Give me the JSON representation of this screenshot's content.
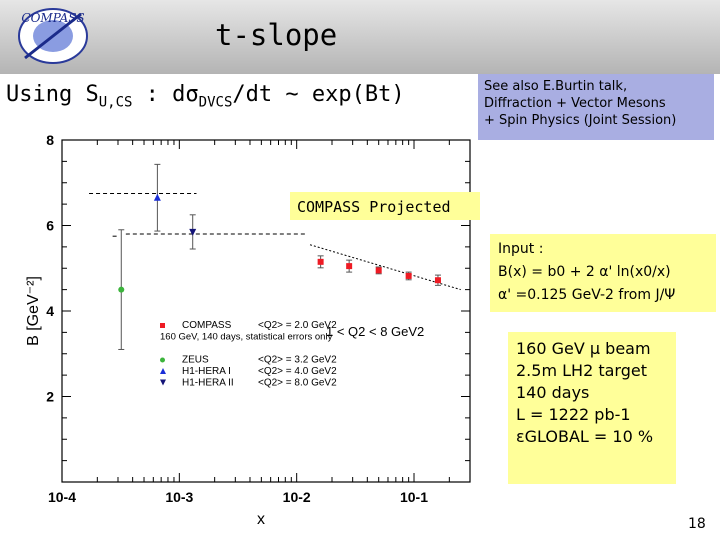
{
  "slide": {
    "title": "t-slope",
    "logo_text": "COMPASS",
    "subtitle": {
      "pre": "Using S",
      "sub": "U,CS",
      "mid": " : dσ",
      "sub2": "DVCS",
      "post": "/dt ~ exp(Bt)"
    },
    "see_also_lines": [
      "See also E.Burtin talk,",
      "Diffraction + Vector Mesons",
      "+ Spin Physics (Joint Session)"
    ],
    "input": {
      "heading": "Input :",
      "formula": "B(x) = b0 + 2 α' ln(x0/x)",
      "alpha": "α' =0.125 GeV-2 from J/Ψ"
    },
    "beam": {
      "lines": [
        "160 GeV μ beam",
        "2.5m LH2 target",
        "140 days",
        "L = 1222 pb-1",
        "εGLOBAL = 10 %"
      ]
    },
    "page_number": "18",
    "colors": {
      "header": "#c8c8c8",
      "see_also_bg": "#a9aee2",
      "note_bg": "#ffff99",
      "compass": "#ee1b24",
      "zeus": "#3cb43c",
      "h1_1": "#1a2ed8",
      "h1_2": "#141478"
    }
  },
  "chart_data": {
    "type": "scatter",
    "xscale": "log",
    "xlim": [
      0.0001,
      0.3
    ],
    "ylim": [
      0,
      8
    ],
    "xlabel": "x",
    "ylabel": "B [GeV⁻²]",
    "x_tick_labels": [
      "10-4",
      "10-3",
      "10-2",
      "10-1"
    ],
    "y_tick_labels": [
      "2",
      "4",
      "6",
      "8"
    ],
    "projection_label": "COMPASS Projected",
    "q2_label": "1 < Q2 < 8 GeV2",
    "legend_note": "160 GeV, 140 days, statistical errors only",
    "series": [
      {
        "name": "COMPASS",
        "q2": "<Q2> = 2.0 GeV2",
        "color": "#ee1b24",
        "points": [
          {
            "x": 0.016,
            "y": 5.15,
            "err": 0.14
          },
          {
            "x": 0.028,
            "y": 5.05,
            "err": 0.14
          },
          {
            "x": 0.05,
            "y": 4.95,
            "err": 0.08
          },
          {
            "x": 0.09,
            "y": 4.82,
            "err": 0.09
          },
          {
            "x": 0.16,
            "y": 4.72,
            "err": 0.12
          }
        ]
      },
      {
        "name": "ZEUS",
        "q2": "<Q2> = 3.2 GeV2",
        "color": "#3cb43c",
        "points": [
          {
            "x": 0.00032,
            "y": 4.5,
            "err": 1.4
          }
        ]
      },
      {
        "name": "H1-HERA I",
        "q2": "<Q2> = 4.0 GeV2",
        "color": "#1a2ed8",
        "points": [
          {
            "x": 0.00065,
            "y": 6.65,
            "err": 0.78
          }
        ]
      },
      {
        "name": "H1-HERA II",
        "q2": "<Q2> = 8.0 GeV2",
        "color": "#141478",
        "points": [
          {
            "x": 0.0013,
            "y": 5.85,
            "err": 0.4
          }
        ]
      }
    ],
    "fit_line": {
      "x": [
        0.013,
        0.25
      ],
      "y": [
        5.55,
        4.5
      ]
    },
    "guide_lines": [
      {
        "y": 6.75,
        "x": [
          0.00017,
          0.0014
        ]
      },
      {
        "y": 5.8,
        "x": [
          0.00035,
          0.012
        ]
      },
      {
        "y": 5.75,
        "x": [
          0.00027,
          0.0003
        ]
      }
    ]
  }
}
